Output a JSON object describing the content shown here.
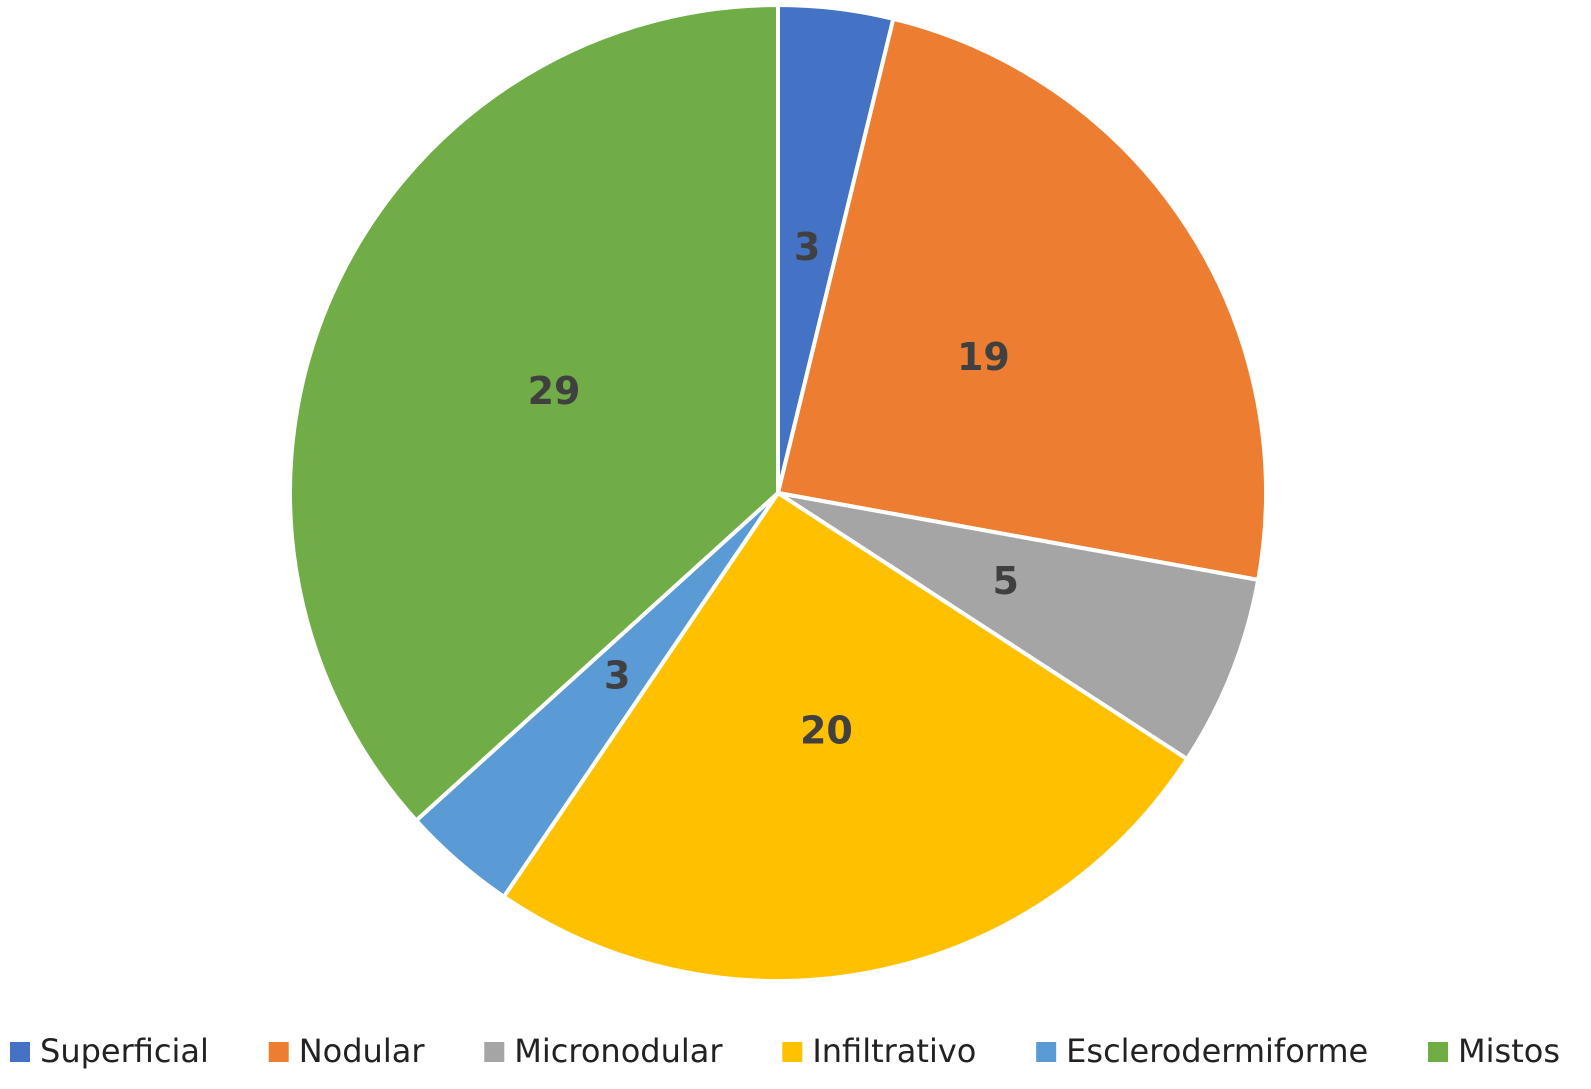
{
  "chart_data": {
    "type": "pie",
    "categories": [
      "Superficial",
      "Nodular",
      "Micronodular",
      "Infiltrativo",
      "Esclerodermiforme",
      "Mistos"
    ],
    "values": [
      3,
      19,
      5,
      20,
      3,
      29
    ],
    "colors": [
      "#4472c4",
      "#ed7d31",
      "#a5a5a5",
      "#ffc000",
      "#5b9bd5",
      "#70ad47"
    ],
    "legend": "bottom"
  }
}
